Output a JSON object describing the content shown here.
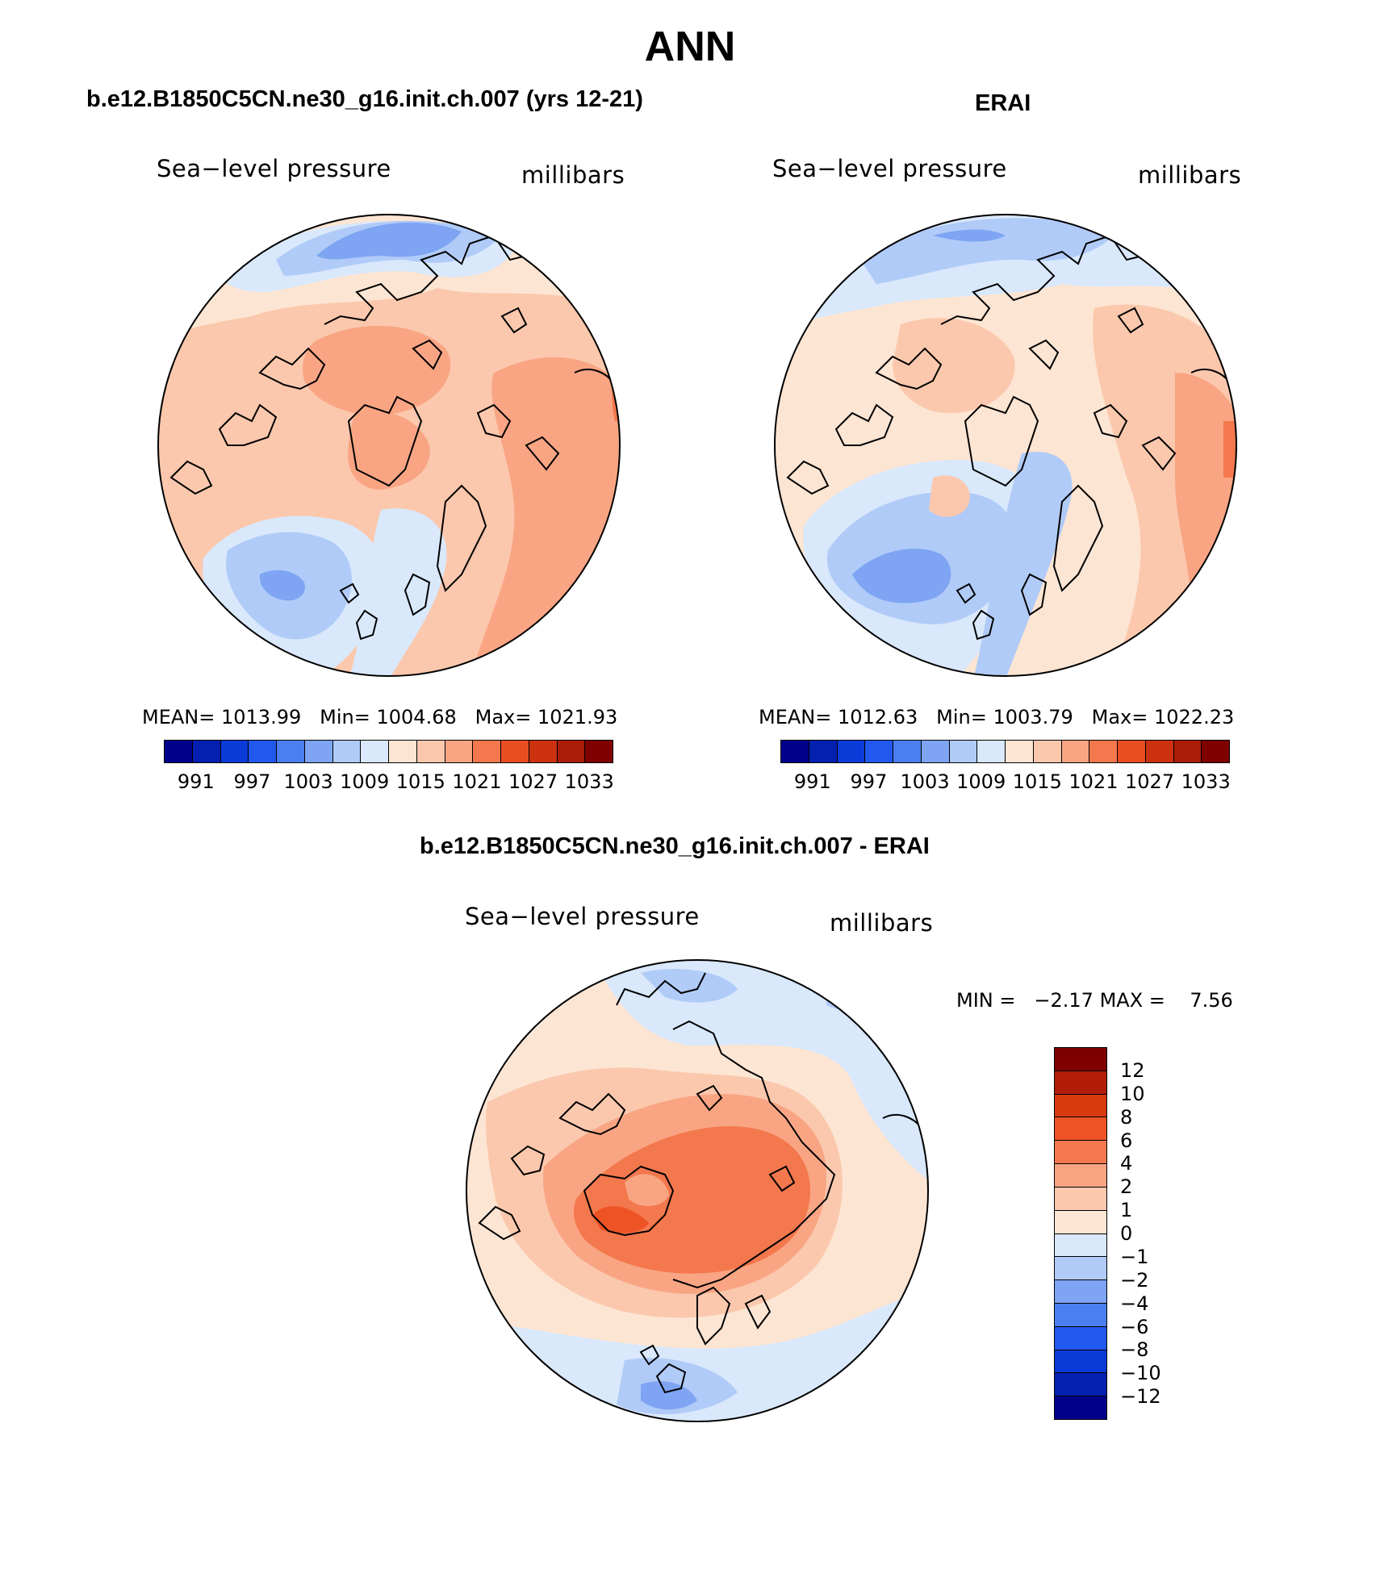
{
  "main_title": "ANN",
  "panels": [
    {
      "case_title": "b.e12.B1850C5CN.ne30_g16.init.ch.007 (yrs 12-21)",
      "variable": "Sea−level pressure",
      "units": "millibars",
      "stats": {
        "mean_label": "MEAN=",
        "mean": "1013.99",
        "min_label": "Min=",
        "min": "1004.68",
        "max_label": "Max=",
        "max": "1021.93"
      },
      "colorbar_labels": [
        "991",
        "997",
        "1003",
        "1009",
        "1015",
        "1021",
        "1027",
        "1033"
      ]
    },
    {
      "case_title": "ERAI",
      "variable": "Sea−level pressure",
      "units": "millibars",
      "stats": {
        "mean_label": "MEAN=",
        "mean": "1012.63",
        "min_label": "Min=",
        "min": "1003.79",
        "max_label": "Max=",
        "max": "1022.23"
      },
      "colorbar_labels": [
        "991",
        "997",
        "1003",
        "1009",
        "1015",
        "1021",
        "1027",
        "1033"
      ]
    },
    {
      "case_title": "b.e12.B1850C5CN.ne30_g16.init.ch.007 - ERAI",
      "variable": "Sea−level pressure",
      "units": "millibars",
      "stats": {
        "min_label": "MIN =",
        "min": "−2.17",
        "max_label": "MAX =",
        "max": "7.56"
      },
      "colorbar_labels": [
        "12",
        "10",
        "8",
        "6",
        "4",
        "2",
        "1",
        "0",
        "−1",
        "−2",
        "−4",
        "−6",
        "−8",
        "−10",
        "−12"
      ]
    }
  ],
  "colors": {
    "slp_scale": [
      "#00008b",
      "#0420b0",
      "#0a3bd8",
      "#2159ee",
      "#4b7ff0",
      "#7ea4f3",
      "#b0cbf8",
      "#d9e8fb",
      "#fde5d3",
      "#fbc8ad",
      "#f9a583",
      "#f4784d",
      "#e94e22",
      "#cc3110",
      "#ab1d08",
      "#7f0000"
    ],
    "diff_scale": [
      "#7f0000",
      "#b21d07",
      "#d83a0e",
      "#ee5326",
      "#f4784d",
      "#f9a583",
      "#fbc8ad",
      "#fde5d3",
      "#d9e8fb",
      "#b0cbf8",
      "#7ea4f3",
      "#4b7ff0",
      "#2159ee",
      "#0a3bd8",
      "#0420b0",
      "#00008b"
    ]
  }
}
